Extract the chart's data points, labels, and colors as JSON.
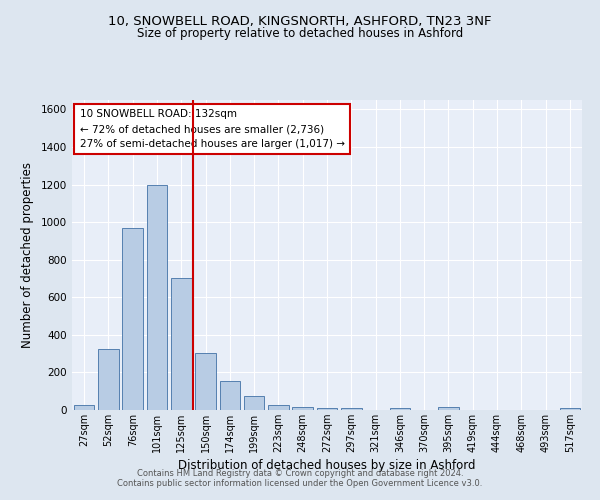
{
  "title_line1": "10, SNOWBELL ROAD, KINGSNORTH, ASHFORD, TN23 3NF",
  "title_line2": "Size of property relative to detached houses in Ashford",
  "xlabel": "Distribution of detached houses by size in Ashford",
  "ylabel": "Number of detached properties",
  "footnote_line1": "Contains HM Land Registry data © Crown copyright and database right 2024.",
  "footnote_line2": "Contains public sector information licensed under the Open Government Licence v3.0.",
  "bar_labels": [
    "27sqm",
    "52sqm",
    "76sqm",
    "101sqm",
    "125sqm",
    "150sqm",
    "174sqm",
    "199sqm",
    "223sqm",
    "248sqm",
    "272sqm",
    "297sqm",
    "321sqm",
    "346sqm",
    "370sqm",
    "395sqm",
    "419sqm",
    "444sqm",
    "468sqm",
    "493sqm",
    "517sqm"
  ],
  "bar_values": [
    28,
    325,
    970,
    1200,
    700,
    305,
    155,
    75,
    28,
    18,
    12,
    10,
    0,
    12,
    0,
    15,
    0,
    0,
    0,
    0,
    12
  ],
  "bar_color": "#b8cce4",
  "bar_edge_color": "#5580b0",
  "bg_color": "#dde6f0",
  "plot_bg_color": "#e8eef8",
  "grid_color": "#ffffff",
  "vline_x": 4.5,
  "vline_color": "#cc0000",
  "annotation_line1": "10 SNOWBELL ROAD: 132sqm",
  "annotation_line2": "← 72% of detached houses are smaller (2,736)",
  "annotation_line3": "27% of semi-detached houses are larger (1,017) →",
  "annotation_box_color": "#ffffff",
  "annotation_box_edge_color": "#cc0000",
  "ylim": [
    0,
    1650
  ],
  "yticks": [
    0,
    200,
    400,
    600,
    800,
    1000,
    1200,
    1400,
    1600
  ]
}
